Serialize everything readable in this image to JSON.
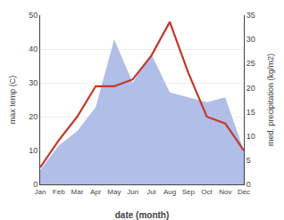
{
  "chart_data": {
    "type": "line",
    "categories": [
      "Jan",
      "Feb",
      "Mar",
      "Apr",
      "May",
      "Jun",
      "Jul",
      "Aug",
      "Sep",
      "Oct",
      "Nov",
      "Dec"
    ],
    "series": [
      {
        "type": "area",
        "color": "#b0bee8",
        "axis": "y2",
        "values": [
          3,
          8,
          11,
          16,
          30,
          21,
          27,
          19,
          18,
          17,
          18,
          7
        ]
      },
      {
        "type": "line",
        "color": "#c0392b",
        "values": [
          5,
          13,
          20,
          29,
          29,
          31,
          38,
          48,
          33,
          20,
          18,
          10
        ]
      }
    ],
    "xlabel": "date (month)",
    "ylabel": "max temp (C)",
    "y2label": "med. precipitation (kg/m2)",
    "ylim": [
      0,
      50
    ],
    "yticks": [
      0,
      10,
      20,
      30,
      40,
      50
    ],
    "y2lim": [
      0,
      35
    ],
    "y2ticks": [
      0,
      5,
      10,
      15,
      20,
      25,
      30,
      35
    ],
    "grid": true
  }
}
